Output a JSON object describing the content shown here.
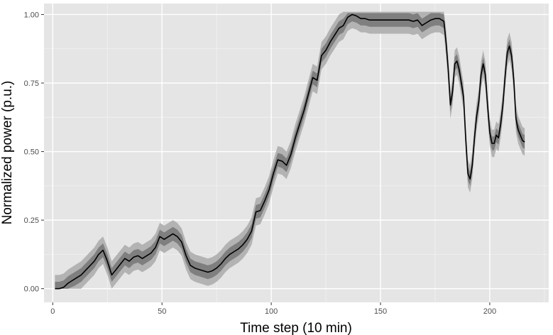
{
  "chart_data": {
    "type": "line",
    "title": "",
    "xlabel": "Time step (10 min)",
    "ylabel": "Normalized power (p.u.)",
    "xlim": [
      -4,
      227
    ],
    "ylim": [
      -0.05,
      1.04
    ],
    "x_ticks": [
      0,
      50,
      100,
      150,
      200
    ],
    "x_tick_labels": [
      "0",
      "50",
      "100",
      "150",
      "200"
    ],
    "y_ticks": [
      0.0,
      0.25,
      0.5,
      0.75,
      1.0
    ],
    "y_tick_labels": [
      "0.00",
      "0.25",
      "0.50",
      "0.75",
      "1.00"
    ],
    "grid": true,
    "legend": "none",
    "colors": {
      "panel_background": "#e5e5e5",
      "grid_major": "#ffffff",
      "grid_minor": "#f2f2f2",
      "band_outer": "#b3b3b3",
      "band_inner": "#7f7f7f",
      "line": "#000000",
      "tick_text": "#4d4d4d",
      "tick_mark": "#333333"
    },
    "series": [
      {
        "bands": "inner and outer uncertainty intervals",
        "points": [
          [
            1,
            0.0
          ],
          [
            3,
            0.0
          ],
          [
            5,
            0.005
          ],
          [
            7,
            0.02
          ],
          [
            10,
            0.035
          ],
          [
            13,
            0.05
          ],
          [
            16,
            0.075
          ],
          [
            19,
            0.1
          ],
          [
            21,
            0.125
          ],
          [
            23,
            0.14
          ],
          [
            25,
            0.1
          ],
          [
            27,
            0.05
          ],
          [
            29,
            0.07
          ],
          [
            31,
            0.09
          ],
          [
            33,
            0.11
          ],
          [
            35,
            0.1
          ],
          [
            37,
            0.115
          ],
          [
            39,
            0.12
          ],
          [
            41,
            0.11
          ],
          [
            43,
            0.12
          ],
          [
            45,
            0.13
          ],
          [
            47,
            0.15
          ],
          [
            49,
            0.19
          ],
          [
            51,
            0.18
          ],
          [
            53,
            0.19
          ],
          [
            55,
            0.2
          ],
          [
            57,
            0.19
          ],
          [
            59,
            0.17
          ],
          [
            61,
            0.12
          ],
          [
            63,
            0.085
          ],
          [
            65,
            0.075
          ],
          [
            67,
            0.07
          ],
          [
            69,
            0.065
          ],
          [
            71,
            0.06
          ],
          [
            73,
            0.065
          ],
          [
            75,
            0.075
          ],
          [
            77,
            0.09
          ],
          [
            79,
            0.11
          ],
          [
            81,
            0.125
          ],
          [
            83,
            0.135
          ],
          [
            85,
            0.145
          ],
          [
            87,
            0.16
          ],
          [
            89,
            0.18
          ],
          [
            91,
            0.21
          ],
          [
            93,
            0.28
          ],
          [
            95,
            0.285
          ],
          [
            97,
            0.32
          ],
          [
            99,
            0.36
          ],
          [
            101,
            0.42
          ],
          [
            103,
            0.47
          ],
          [
            105,
            0.465
          ],
          [
            107,
            0.45
          ],
          [
            109,
            0.49
          ],
          [
            111,
            0.55
          ],
          [
            113,
            0.6
          ],
          [
            115,
            0.65
          ],
          [
            117,
            0.71
          ],
          [
            119,
            0.77
          ],
          [
            121,
            0.76
          ],
          [
            123,
            0.85
          ],
          [
            125,
            0.87
          ],
          [
            127,
            0.9
          ],
          [
            129,
            0.925
          ],
          [
            131,
            0.95
          ],
          [
            133,
            0.96
          ],
          [
            135,
            0.99
          ],
          [
            137,
            1.0
          ],
          [
            139,
            0.995
          ],
          [
            141,
            0.985
          ],
          [
            143,
            0.985
          ],
          [
            145,
            0.98
          ],
          [
            150,
            0.98
          ],
          [
            155,
            0.98
          ],
          [
            160,
            0.98
          ],
          [
            163,
            0.98
          ],
          [
            165,
            0.975
          ],
          [
            167,
            0.98
          ],
          [
            169,
            0.96
          ],
          [
            171,
            0.97
          ],
          [
            173,
            0.98
          ],
          [
            175,
            0.985
          ],
          [
            177,
            0.985
          ],
          [
            179,
            0.975
          ],
          [
            180,
            0.9
          ],
          [
            181,
            0.8
          ],
          [
            182,
            0.67
          ],
          [
            183,
            0.72
          ],
          [
            184,
            0.82
          ],
          [
            185,
            0.83
          ],
          [
            186,
            0.8
          ],
          [
            187,
            0.75
          ],
          [
            188,
            0.7
          ],
          [
            189,
            0.55
          ],
          [
            190,
            0.42
          ],
          [
            191,
            0.4
          ],
          [
            192,
            0.45
          ],
          [
            193,
            0.55
          ],
          [
            194,
            0.63
          ],
          [
            195,
            0.68
          ],
          [
            196,
            0.78
          ],
          [
            197,
            0.82
          ],
          [
            198,
            0.78
          ],
          [
            199,
            0.67
          ],
          [
            200,
            0.57
          ],
          [
            201,
            0.53
          ],
          [
            202,
            0.53
          ],
          [
            203,
            0.56
          ],
          [
            204,
            0.55
          ],
          [
            205,
            0.6
          ],
          [
            206,
            0.67
          ],
          [
            207,
            0.77
          ],
          [
            208,
            0.86
          ],
          [
            209,
            0.885
          ],
          [
            210,
            0.85
          ],
          [
            211,
            0.76
          ],
          [
            212,
            0.62
          ],
          [
            213,
            0.58
          ],
          [
            214,
            0.56
          ],
          [
            215,
            0.54
          ],
          [
            216,
            0.535
          ]
        ],
        "band_inner_halfwidth": 0.025,
        "band_outer_halfwidth": 0.05
      }
    ]
  }
}
